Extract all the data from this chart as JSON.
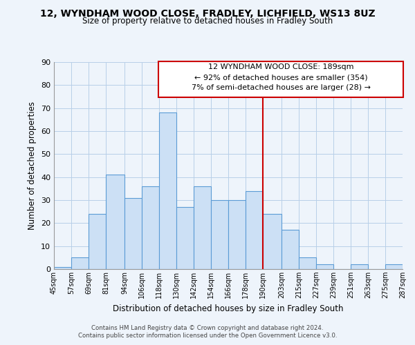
{
  "title": "12, WYNDHAM WOOD CLOSE, FRADLEY, LICHFIELD, WS13 8UZ",
  "subtitle": "Size of property relative to detached houses in Fradley South",
  "xlabel": "Distribution of detached houses by size in Fradley South",
  "ylabel": "Number of detached properties",
  "bar_edges": [
    45,
    57,
    69,
    81,
    94,
    106,
    118,
    130,
    142,
    154,
    166,
    178,
    190,
    203,
    215,
    227,
    239,
    251,
    263,
    275,
    287
  ],
  "bar_heights": [
    1,
    5,
    24,
    41,
    31,
    36,
    68,
    27,
    36,
    30,
    30,
    34,
    24,
    17,
    5,
    2,
    0,
    2,
    0,
    2
  ],
  "bar_color": "#cce0f5",
  "bar_edge_color": "#5b9bd5",
  "vline_x": 190,
  "vline_color": "#cc0000",
  "ylim": [
    0,
    90
  ],
  "yticks": [
    0,
    10,
    20,
    30,
    40,
    50,
    60,
    70,
    80,
    90
  ],
  "tick_labels": [
    "45sqm",
    "57sqm",
    "69sqm",
    "81sqm",
    "94sqm",
    "106sqm",
    "118sqm",
    "130sqm",
    "142sqm",
    "154sqm",
    "166sqm",
    "178sqm",
    "190sqm",
    "203sqm",
    "215sqm",
    "227sqm",
    "239sqm",
    "251sqm",
    "263sqm",
    "275sqm",
    "287sqm"
  ],
  "annotation_title": "12 WYNDHAM WOOD CLOSE: 189sqm",
  "annotation_line1": "← 92% of detached houses are smaller (354)",
  "annotation_line2": "7% of semi-detached houses are larger (28) →",
  "footnote1": "Contains HM Land Registry data © Crown copyright and database right 2024.",
  "footnote2": "Contains public sector information licensed under the Open Government Licence v3.0.",
  "bg_color": "#eef4fb",
  "grid_color": "#b8cfe8"
}
